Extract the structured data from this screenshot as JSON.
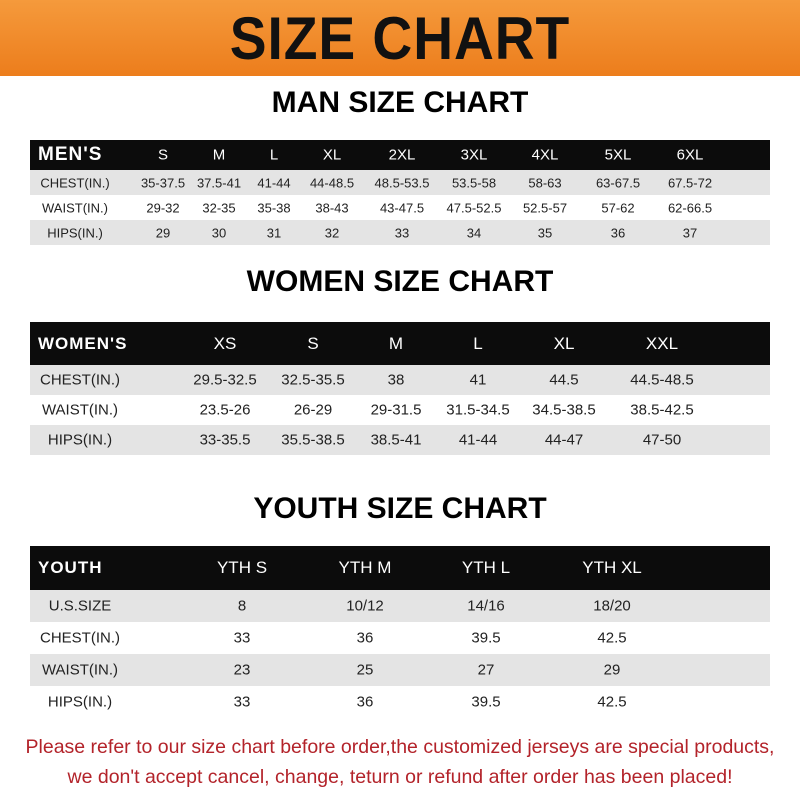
{
  "banner": {
    "title": "SIZE CHART",
    "color": "#f08a24"
  },
  "men": {
    "title": "MAN SIZE CHART",
    "header": [
      "MEN'S",
      "S",
      "M",
      "L",
      "XL",
      "2XL",
      "3XL",
      "4XL",
      "5XL",
      "6XL"
    ],
    "rows": [
      [
        "CHEST(IN.)",
        "35-37.5",
        "37.5-41",
        "41-44",
        "44-48.5",
        "48.5-53.5",
        "53.5-58",
        "58-63",
        "63-67.5",
        "67.5-72"
      ],
      [
        "WAIST(IN.)",
        "29-32",
        "32-35",
        "35-38",
        "38-43",
        "43-47.5",
        "47.5-52.5",
        "52.5-57",
        "57-62",
        "62-66.5"
      ],
      [
        "HIPS(IN.)",
        "29",
        "30",
        "31",
        "32",
        "33",
        "34",
        "35",
        "36",
        "37"
      ]
    ]
  },
  "women": {
    "title": "WOMEN SIZE CHART",
    "header": [
      "WOMEN'S",
      "XS",
      "S",
      "M",
      "L",
      "XL",
      "XXL"
    ],
    "rows": [
      [
        "CHEST(IN.)",
        "29.5-32.5",
        "32.5-35.5",
        "38",
        "41",
        "44.5",
        "44.5-48.5"
      ],
      [
        "WAIST(IN.)",
        "23.5-26",
        "26-29",
        "29-31.5",
        "31.5-34.5",
        "34.5-38.5",
        "38.5-42.5"
      ],
      [
        "HIPS(IN.)",
        "33-35.5",
        "35.5-38.5",
        "38.5-41",
        "41-44",
        "44-47",
        "47-50"
      ]
    ]
  },
  "youth": {
    "title": "YOUTH SIZE CHART",
    "header": [
      "YOUTH",
      "YTH S",
      "YTH M",
      "YTH L",
      "YTH XL"
    ],
    "rows": [
      [
        "U.S.SIZE",
        "8",
        "10/12",
        "14/16",
        "18/20"
      ],
      [
        "CHEST(IN.)",
        "33",
        "36",
        "39.5",
        "42.5"
      ],
      [
        "WAIST(IN.)",
        "23",
        "25",
        "27",
        "29"
      ],
      [
        "HIPS(IN.)",
        "33",
        "36",
        "39.5",
        "42.5"
      ]
    ]
  },
  "notice": {
    "line1": "Please refer to our size chart before order,the customized jerseys are special products,",
    "line2": "we don't accept cancel, change, teturn or refund after order has been placed!",
    "color": "#b3232a"
  }
}
